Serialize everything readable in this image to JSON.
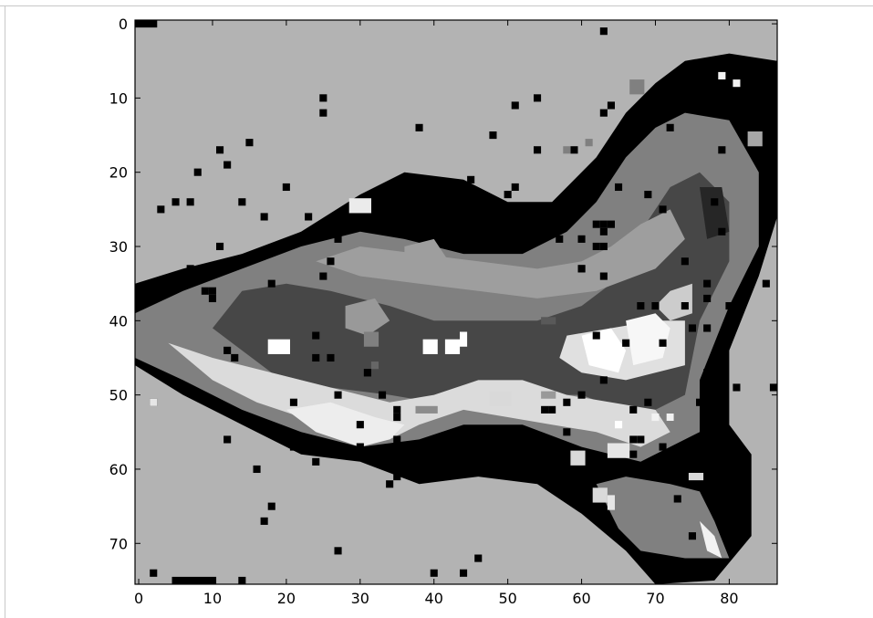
{
  "chart_data": {
    "type": "heatmap",
    "colormap": "gray",
    "xlim": [
      -0.5,
      86.5
    ],
    "ylim": [
      75.5,
      -0.5
    ],
    "x_ticks": [
      0,
      10,
      20,
      30,
      40,
      50,
      60,
      70,
      80
    ],
    "y_ticks": [
      0,
      10,
      20,
      30,
      40,
      50,
      60,
      70
    ],
    "x_tick_labels": [
      "0",
      "10",
      "20",
      "30",
      "40",
      "50",
      "60",
      "70",
      "80"
    ],
    "y_tick_labels": [
      "0",
      "10",
      "20",
      "30",
      "40",
      "50",
      "60",
      "70"
    ],
    "grid": false,
    "legend": "none",
    "background_level": 0.7,
    "regions": [
      {
        "kind": "halo",
        "level": 0.0,
        "points": [
          [
            -0.5,
            35
          ],
          [
            6,
            33
          ],
          [
            14,
            31
          ],
          [
            22,
            28
          ],
          [
            30,
            23
          ],
          [
            36,
            20
          ],
          [
            44,
            21
          ],
          [
            50,
            24
          ],
          [
            56,
            24
          ],
          [
            62,
            18
          ],
          [
            66,
            12
          ],
          [
            70,
            8
          ],
          [
            74,
            5
          ],
          [
            80,
            4
          ],
          [
            86.5,
            5
          ],
          [
            86.5,
            26
          ],
          [
            84,
            34
          ],
          [
            80,
            44
          ],
          [
            80,
            54
          ],
          [
            83,
            58
          ],
          [
            83,
            69
          ],
          [
            78,
            75
          ],
          [
            70,
            75.5
          ],
          [
            66,
            71
          ],
          [
            60,
            66
          ],
          [
            54,
            62
          ],
          [
            46,
            61
          ],
          [
            38,
            62
          ],
          [
            30,
            59
          ],
          [
            22,
            58
          ],
          [
            14,
            54
          ],
          [
            6,
            50
          ],
          [
            -0.5,
            46
          ]
        ]
      },
      {
        "kind": "body",
        "level": 0.5,
        "points": [
          [
            -0.5,
            39
          ],
          [
            6,
            36
          ],
          [
            14,
            33
          ],
          [
            22,
            30
          ],
          [
            30,
            28
          ],
          [
            36,
            29
          ],
          [
            44,
            31
          ],
          [
            52,
            31
          ],
          [
            58,
            28
          ],
          [
            62,
            24
          ],
          [
            66,
            18
          ],
          [
            70,
            14
          ],
          [
            74,
            12
          ],
          [
            80,
            13
          ],
          [
            84,
            20
          ],
          [
            84,
            30
          ],
          [
            80,
            38
          ],
          [
            76,
            48
          ],
          [
            76,
            55
          ],
          [
            68,
            59
          ],
          [
            60,
            57
          ],
          [
            52,
            54
          ],
          [
            44,
            54
          ],
          [
            38,
            56
          ],
          [
            30,
            57
          ],
          [
            22,
            55
          ],
          [
            14,
            52
          ],
          [
            6,
            48
          ],
          [
            -0.5,
            45
          ]
        ]
      },
      {
        "kind": "tail",
        "level": 0.5,
        "points": [
          [
            62,
            62
          ],
          [
            66,
            61
          ],
          [
            72,
            62
          ],
          [
            76,
            63
          ],
          [
            78,
            67
          ],
          [
            80,
            72
          ],
          [
            74,
            72
          ],
          [
            68,
            71
          ],
          [
            65,
            68
          ]
        ]
      },
      {
        "kind": "dark-core",
        "level": 0.28,
        "points": [
          [
            10,
            41
          ],
          [
            14,
            36
          ],
          [
            20,
            35
          ],
          [
            26,
            36
          ],
          [
            34,
            38
          ],
          [
            40,
            40
          ],
          [
            48,
            40
          ],
          [
            54,
            40
          ],
          [
            60,
            38
          ],
          [
            64,
            35
          ],
          [
            68,
            28
          ],
          [
            72,
            22
          ],
          [
            76,
            20
          ],
          [
            80,
            24
          ],
          [
            80,
            32
          ],
          [
            76,
            40
          ],
          [
            74,
            50
          ],
          [
            68,
            53
          ],
          [
            60,
            50
          ],
          [
            52,
            50
          ],
          [
            46,
            50
          ],
          [
            40,
            51
          ],
          [
            34,
            50
          ],
          [
            26,
            49
          ],
          [
            18,
            47
          ]
        ]
      },
      {
        "kind": "upper-ridge",
        "level": 0.62,
        "points": [
          [
            24,
            32
          ],
          [
            30,
            30
          ],
          [
            38,
            31
          ],
          [
            46,
            32
          ],
          [
            54,
            33
          ],
          [
            60,
            32
          ],
          [
            64,
            30
          ],
          [
            68,
            27
          ],
          [
            72,
            25
          ],
          [
            74,
            29
          ],
          [
            70,
            33
          ],
          [
            62,
            36
          ],
          [
            54,
            37
          ],
          [
            46,
            36
          ],
          [
            38,
            35
          ],
          [
            30,
            34
          ]
        ]
      },
      {
        "kind": "belly",
        "level": 0.86,
        "points": [
          [
            4,
            43
          ],
          [
            10,
            45
          ],
          [
            18,
            47
          ],
          [
            26,
            49
          ],
          [
            34,
            51
          ],
          [
            40,
            50
          ],
          [
            46,
            48
          ],
          [
            52,
            48
          ],
          [
            58,
            50
          ],
          [
            64,
            51
          ],
          [
            70,
            52
          ],
          [
            72,
            55
          ],
          [
            68,
            57
          ],
          [
            62,
            55
          ],
          [
            56,
            54
          ],
          [
            50,
            53
          ],
          [
            44,
            52
          ],
          [
            38,
            54
          ],
          [
            34,
            56
          ],
          [
            28,
            55
          ],
          [
            22,
            53
          ],
          [
            16,
            51
          ],
          [
            10,
            48
          ]
        ]
      },
      {
        "kind": "belly-lower",
        "level": 0.93,
        "points": [
          [
            20,
            52
          ],
          [
            26,
            51
          ],
          [
            32,
            53
          ],
          [
            36,
            54
          ],
          [
            34,
            56
          ],
          [
            30,
            57
          ],
          [
            24,
            55
          ]
        ]
      },
      {
        "kind": "fin-light",
        "level": 0.88,
        "points": [
          [
            58,
            42
          ],
          [
            64,
            41
          ],
          [
            70,
            40
          ],
          [
            74,
            40
          ],
          [
            74,
            46
          ],
          [
            70,
            47
          ],
          [
            66,
            48
          ],
          [
            60,
            47
          ],
          [
            57,
            45
          ]
        ]
      },
      {
        "kind": "fin-white",
        "level": 1.0,
        "points": [
          [
            60,
            42
          ],
          [
            64,
            41
          ],
          [
            66,
            44
          ],
          [
            65,
            47
          ],
          [
            61,
            46
          ]
        ]
      },
      {
        "kind": "fin-white-2",
        "level": 0.97,
        "points": [
          [
            66,
            40
          ],
          [
            70,
            39
          ],
          [
            72,
            41
          ],
          [
            71,
            45
          ],
          [
            67,
            46
          ]
        ]
      },
      {
        "kind": "ridge-top",
        "level": 0.8,
        "points": [
          [
            70,
            38
          ],
          [
            72,
            36
          ],
          [
            75,
            35
          ],
          [
            75,
            39
          ],
          [
            72,
            40
          ]
        ]
      },
      {
        "kind": "tail-light",
        "level": 0.95,
        "points": [
          [
            76,
            67
          ],
          [
            78,
            69
          ],
          [
            79,
            72
          ],
          [
            77,
            71
          ]
        ]
      },
      {
        "kind": "patch-mid",
        "level": 0.6,
        "points": [
          [
            28,
            38
          ],
          [
            32,
            37
          ],
          [
            34,
            40
          ],
          [
            31,
            42
          ],
          [
            28,
            41
          ]
        ]
      },
      {
        "kind": "patch-mid",
        "level": 0.62,
        "points": [
          [
            36,
            30
          ],
          [
            40,
            29
          ],
          [
            42,
            32
          ],
          [
            39,
            33
          ],
          [
            36,
            32
          ]
        ]
      },
      {
        "kind": "patch-dark",
        "level": 0.15,
        "points": [
          [
            76,
            22
          ],
          [
            79,
            22
          ],
          [
            80,
            28
          ],
          [
            77,
            29
          ]
        ]
      }
    ],
    "blocks": [
      {
        "x": 18,
        "y": 43,
        "w": 3,
        "h": 2,
        "level": 1.0
      },
      {
        "x": 39,
        "y": 43,
        "w": 2,
        "h": 2,
        "level": 1.0
      },
      {
        "x": 42,
        "y": 43,
        "w": 2,
        "h": 2,
        "level": 1.0
      },
      {
        "x": 44,
        "y": 42,
        "w": 1,
        "h": 2,
        "level": 1.0
      },
      {
        "x": 29,
        "y": 24,
        "w": 3,
        "h": 2,
        "level": 0.92
      },
      {
        "x": 79,
        "y": 7,
        "w": 1,
        "h": 1,
        "level": 0.95
      },
      {
        "x": 81,
        "y": 8,
        "w": 1,
        "h": 1,
        "level": 0.95
      },
      {
        "x": 83,
        "y": 15,
        "w": 2,
        "h": 2,
        "level": 0.65
      },
      {
        "x": 2,
        "y": 51,
        "w": 1,
        "h": 1,
        "level": 0.9
      },
      {
        "x": 32,
        "y": 46,
        "w": 1,
        "h": 1,
        "level": 0.4
      },
      {
        "x": 65,
        "y": 54,
        "w": 1,
        "h": 1,
        "level": 1.0
      },
      {
        "x": 64,
        "y": 57,
        "w": 3,
        "h": 2,
        "level": 0.9
      },
      {
        "x": 59,
        "y": 58,
        "w": 2,
        "h": 2,
        "level": 0.85
      },
      {
        "x": 62,
        "y": 63,
        "w": 2,
        "h": 2,
        "level": 0.85
      },
      {
        "x": 64,
        "y": 64,
        "w": 1,
        "h": 2,
        "level": 0.9
      },
      {
        "x": 75,
        "y": 61,
        "w": 2,
        "h": 1,
        "level": 0.85
      },
      {
        "x": 38,
        "y": 52,
        "w": 3,
        "h": 1,
        "level": 0.55
      },
      {
        "x": 48,
        "y": 50,
        "w": 3,
        "h": 2,
        "level": 0.85
      },
      {
        "x": 55,
        "y": 50,
        "w": 2,
        "h": 1,
        "level": 0.6
      },
      {
        "x": 70,
        "y": 53,
        "w": 1,
        "h": 1,
        "level": 0.95
      },
      {
        "x": 72,
        "y": 53,
        "w": 1,
        "h": 1,
        "level": 0.95
      },
      {
        "x": 31,
        "y": 42,
        "w": 2,
        "h": 2,
        "level": 0.5
      },
      {
        "x": 55,
        "y": 40,
        "w": 2,
        "h": 1,
        "level": 0.35
      },
      {
        "x": 74,
        "y": 6,
        "w": 1,
        "h": 1,
        "level": 0.0
      },
      {
        "x": 61,
        "y": 16,
        "w": 1,
        "h": 1,
        "level": 0.5
      },
      {
        "x": 58,
        "y": 17,
        "w": 1,
        "h": 1,
        "level": 0.5
      },
      {
        "x": 67,
        "y": 8,
        "w": 2,
        "h": 2,
        "level": 0.5
      }
    ],
    "noise_level": 0.0,
    "noise_seed": 7,
    "noise_band": {
      "x_range": [
        -0.5,
        86.5
      ],
      "y_range": [
        -0.5,
        75.5
      ]
    },
    "noise_count": 420,
    "edge_bar": [
      {
        "x": 0,
        "y": 0,
        "w": 3,
        "h": 1,
        "level": 0.0
      },
      {
        "x": 5,
        "y": 75,
        "w": 6,
        "h": 1,
        "level": 0.0
      },
      {
        "x": 2,
        "y": 74,
        "w": 1,
        "h": 1,
        "level": 0.0
      },
      {
        "x": 14,
        "y": 75,
        "w": 1,
        "h": 1,
        "level": 0.0
      }
    ]
  }
}
